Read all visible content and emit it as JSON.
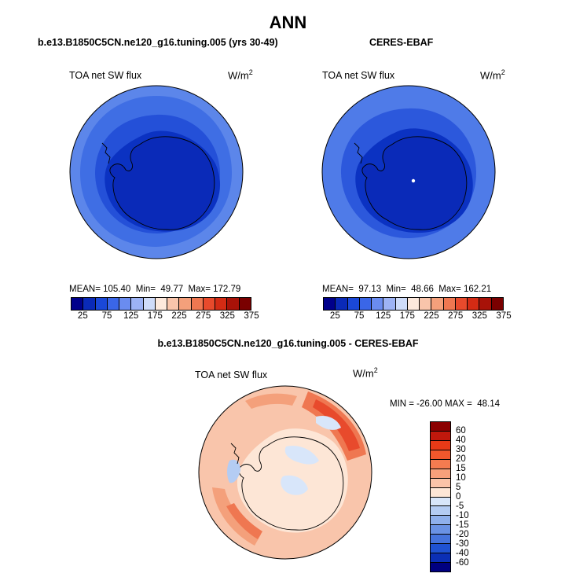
{
  "figure": {
    "title": "ANN",
    "left_panel": {
      "header": "b.e13.B1850C5CN.ne120_g16.tuning.005 (yrs 30-49)",
      "variable": "TOA net SW flux",
      "units": "W/m",
      "units_exp": "2",
      "stats": "MEAN= 105.40  Min=  49.77  Max= 172.79"
    },
    "right_panel": {
      "header": "CERES-EBAF",
      "variable": "TOA net SW flux",
      "units": "W/m",
      "units_exp": "2",
      "stats": "MEAN=  97.13  Min=  48.66  Max= 162.21"
    },
    "diff_panel": {
      "header": "b.e13.B1850C5CN.ne120_g16.tuning.005 - CERES-EBAF",
      "variable": "TOA net SW flux",
      "units": "W/m",
      "units_exp": "2",
      "stats": "MIN = -26.00 MAX =  48.14"
    }
  },
  "abs_colorbar": {
    "colors": [
      "#00008b",
      "#0a2ab8",
      "#1a48d8",
      "#3a66e8",
      "#6a8cf0",
      "#9db3f5",
      "#cfdcf9",
      "#fde9dc",
      "#f9c5ab",
      "#f4a07b",
      "#ef7751",
      "#e84a2c",
      "#d42b14",
      "#a81208",
      "#7a0000"
    ],
    "tick_labels": [
      "25",
      "75",
      "125",
      "175",
      "225",
      "275",
      "325",
      "375"
    ]
  },
  "diff_colorbar": {
    "colors": [
      "#8b0000",
      "#c0180c",
      "#e83a17",
      "#f0572c",
      "#f47b50",
      "#f7a07b",
      "#fac3a8",
      "#fde6d6",
      "#d8e6fa",
      "#b4ccf3",
      "#8fb0ec",
      "#6a92e4",
      "#4573dc",
      "#1f52d2",
      "#0b2fb5",
      "#000080"
    ],
    "tick_labels": [
      "60",
      "40",
      "30",
      "20",
      "15",
      "10",
      "5",
      "0",
      "-5",
      "-10",
      "-15",
      "-20",
      "-30",
      "-40",
      "-60"
    ]
  }
}
